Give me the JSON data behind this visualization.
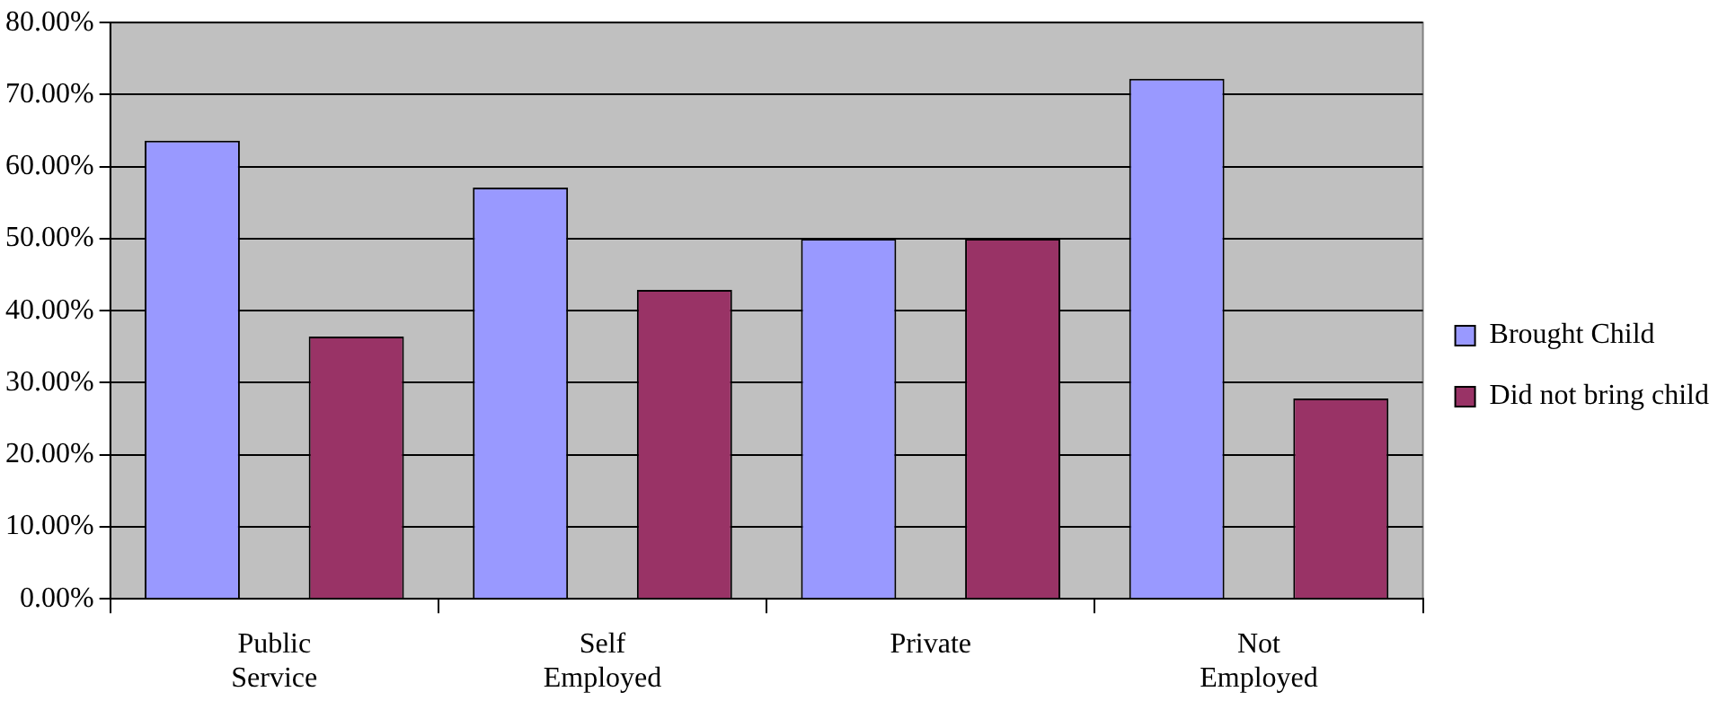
{
  "chart_data": {
    "type": "bar",
    "categories": [
      "Public Service",
      "Self Employed",
      "Private",
      "Not Employed"
    ],
    "series": [
      {
        "name": "Brought Child",
        "color": "#9999ff",
        "values": [
          63.6,
          57.1,
          50,
          72.2
        ]
      },
      {
        "name": "Did not bring child",
        "color": "#993366",
        "values": [
          36.4,
          42.9,
          50,
          27.8
        ]
      }
    ],
    "ylim": [
      0,
      80
    ],
    "yticks": [
      {
        "value": 0,
        "label": "0.00%"
      },
      {
        "value": 10,
        "label": "10.00%"
      },
      {
        "value": 20,
        "label": "20.00%"
      },
      {
        "value": 30,
        "label": "30.00%"
      },
      {
        "value": 40,
        "label": "40.00%"
      },
      {
        "value": 50,
        "label": "50.00%"
      },
      {
        "value": 60,
        "label": "60.00%"
      },
      {
        "value": 70,
        "label": "70.00%"
      },
      {
        "value": 80,
        "label": "80.00%"
      }
    ],
    "grid": "y",
    "legend": "right"
  }
}
